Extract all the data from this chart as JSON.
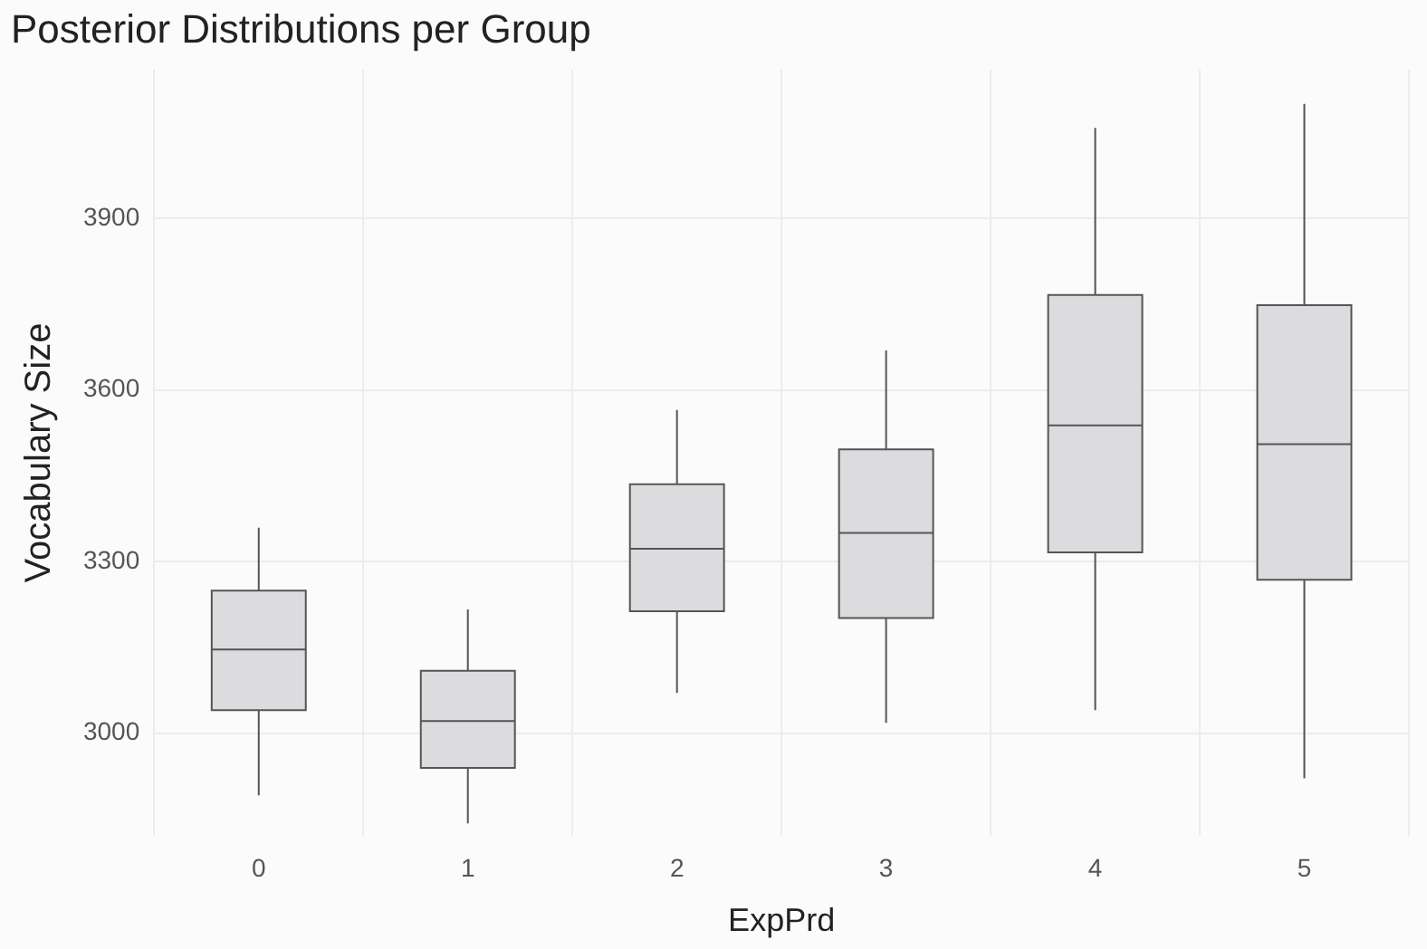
{
  "chart_data": {
    "type": "box",
    "title": "Posterior Distributions per Group",
    "xlabel": "ExpPrd",
    "ylabel": "Vocabulary Size",
    "categories": [
      "0",
      "1",
      "2",
      "3",
      "4",
      "5"
    ],
    "color": "#dcdcde",
    "boxes": [
      {
        "low": 2891,
        "q1": 3040,
        "median": 3146,
        "q3": 3249,
        "high": 3359
      },
      {
        "low": 2842,
        "q1": 2939,
        "median": 3021,
        "q3": 3109,
        "high": 3216
      },
      {
        "low": 3070,
        "q1": 3213,
        "median": 3322,
        "q3": 3435,
        "high": 3565
      },
      {
        "low": 3018,
        "q1": 3201,
        "median": 3350,
        "q3": 3496,
        "high": 3669
      },
      {
        "low": 3040,
        "q1": 3316,
        "median": 3538,
        "q3": 3766,
        "high": 4058
      },
      {
        "low": 2921,
        "q1": 3268,
        "median": 3505,
        "q3": 3748,
        "high": 4100
      }
    ],
    "ylim": [
      2820,
      4160
    ],
    "yticks": [
      3000,
      3300,
      3600,
      3900
    ],
    "grid": true,
    "legend": false
  }
}
